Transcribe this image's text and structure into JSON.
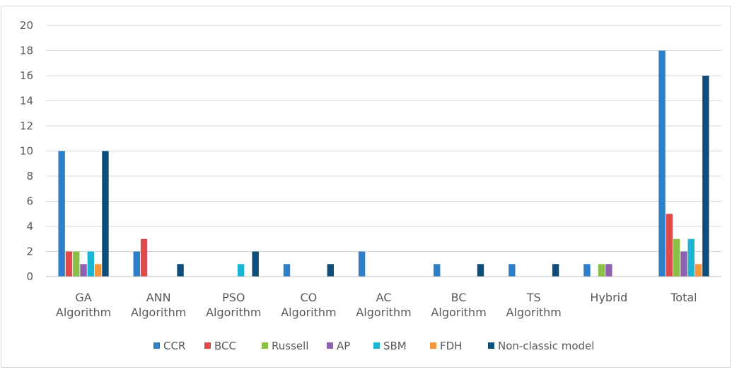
{
  "chart_data": {
    "type": "bar",
    "categories": [
      [
        "GA",
        "Algorithm"
      ],
      [
        "ANN",
        "Algorithm"
      ],
      [
        "PSO",
        "Algorithm"
      ],
      [
        "CO",
        "Algorithm"
      ],
      [
        "AC",
        "Algorithm"
      ],
      [
        "BC",
        "Algorithm"
      ],
      [
        "TS",
        "Algorithm"
      ],
      [
        "Hybrid"
      ],
      [
        "Total"
      ]
    ],
    "series": [
      {
        "name": "CCR",
        "color": "#2e7fca",
        "values": [
          10,
          2,
          0,
          1,
          2,
          1,
          1,
          1,
          18
        ]
      },
      {
        "name": "BCC",
        "color": "#e04a4a",
        "values": [
          2,
          3,
          0,
          0,
          0,
          0,
          0,
          0,
          5
        ]
      },
      {
        "name": "Russell",
        "color": "#8bbf45",
        "values": [
          2,
          0,
          0,
          0,
          0,
          0,
          0,
          1,
          3
        ]
      },
      {
        "name": "AP",
        "color": "#8e62b1",
        "values": [
          1,
          0,
          0,
          0,
          0,
          0,
          0,
          1,
          2
        ]
      },
      {
        "name": "SBM",
        "color": "#1bb5d4",
        "values": [
          2,
          0,
          1,
          0,
          0,
          0,
          0,
          0,
          3
        ]
      },
      {
        "name": "FDH",
        "color": "#f5963b",
        "values": [
          1,
          0,
          0,
          0,
          0,
          0,
          0,
          0,
          1
        ]
      },
      {
        "name": "Non-classic model",
        "color": "#0f4e7a",
        "values": [
          10,
          1,
          2,
          1,
          0,
          1,
          1,
          0,
          16
        ]
      }
    ],
    "yticks": [
      "0",
      "2",
      "4",
      "6",
      "8",
      "10",
      "12",
      "14",
      "16",
      "18",
      "20"
    ],
    "ylim": [
      0,
      20
    ],
    "grid": true,
    "legend": "bottom"
  }
}
